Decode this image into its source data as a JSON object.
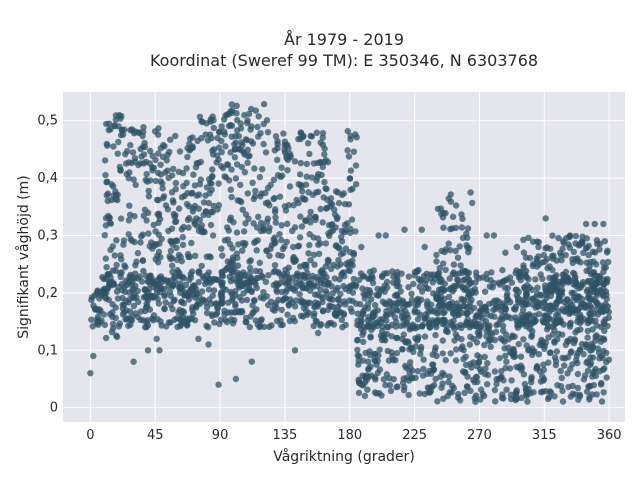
{
  "chart_data": {
    "type": "scatter",
    "title_line1": "År 1979 - 2019",
    "title_line2": "Koordinat (Sweref 99 TM): E 350346, N 6303768",
    "xlabel": "Vågriktning (grader)",
    "ylabel": "Signifikant våghöjd (m)",
    "xlim": [
      -19,
      371
    ],
    "ylim": [
      -0.025,
      0.55
    ],
    "xticks": [
      0,
      45,
      90,
      135,
      180,
      225,
      270,
      315,
      360
    ],
    "xtick_labels": [
      "0",
      "45",
      "90",
      "135",
      "180",
      "225",
      "270",
      "315",
      "360"
    ],
    "yticks": [
      0,
      0.1,
      0.2,
      0.3,
      0.4,
      0.5
    ],
    "ytick_labels": [
      "0",
      "0,1",
      "0,2",
      "0,3",
      "0,4",
      "0,5"
    ],
    "grid": true,
    "background_color": "#e5e5ee",
    "marker_color": "#2f5366",
    "clusters": [
      {
        "x_range": [
          0,
          360
        ],
        "y_range": [
          0.14,
          0.24
        ]
      },
      {
        "x_range": [
          10,
          25
        ],
        "y_range": [
          0.12,
          0.51
        ]
      },
      {
        "x_range": [
          25,
          48
        ],
        "y_range": [
          0.18,
          0.49
        ]
      },
      {
        "x_range": [
          48,
          72
        ],
        "y_range": [
          0.18,
          0.48
        ]
      },
      {
        "x_range": [
          72,
          92
        ],
        "y_range": [
          0.18,
          0.51
        ]
      },
      {
        "x_range": [
          92,
          125
        ],
        "y_range": [
          0.2,
          0.53
        ]
      },
      {
        "x_range": [
          125,
          165
        ],
        "y_range": [
          0.2,
          0.48
        ]
      },
      {
        "x_range": [
          165,
          178
        ],
        "y_range": [
          0.2,
          0.38
        ]
      },
      {
        "x_range": [
          178,
          185
        ],
        "y_range": [
          0.2,
          0.49
        ]
      },
      {
        "x_range": [
          185,
          240
        ],
        "y_range": [
          0.02,
          0.17
        ]
      },
      {
        "x_range": [
          240,
          265
        ],
        "y_range": [
          0.01,
          0.38
        ]
      },
      {
        "x_range": [
          265,
          360
        ],
        "y_range": [
          0.01,
          0.16
        ]
      },
      {
        "x_range": [
          300,
          360
        ],
        "y_range": [
          0.16,
          0.3
        ]
      }
    ],
    "outliers": [
      {
        "x": 0,
        "y": 0.06
      },
      {
        "x": 2,
        "y": 0.09
      },
      {
        "x": 12,
        "y": 0.36
      },
      {
        "x": 30,
        "y": 0.08
      },
      {
        "x": 40,
        "y": 0.1
      },
      {
        "x": 46,
        "y": 0.12
      },
      {
        "x": 48,
        "y": 0.1
      },
      {
        "x": 66,
        "y": 0.2
      },
      {
        "x": 75,
        "y": 0.12
      },
      {
        "x": 82,
        "y": 0.11
      },
      {
        "x": 89,
        "y": 0.04
      },
      {
        "x": 101,
        "y": 0.05
      },
      {
        "x": 112,
        "y": 0.08
      },
      {
        "x": 142,
        "y": 0.1
      },
      {
        "x": 158,
        "y": 0.13
      },
      {
        "x": 177,
        "y": 0.18
      },
      {
        "x": 188,
        "y": 0.28
      },
      {
        "x": 200,
        "y": 0.3
      },
      {
        "x": 205,
        "y": 0.3
      },
      {
        "x": 218,
        "y": 0.31
      },
      {
        "x": 230,
        "y": 0.31
      },
      {
        "x": 232,
        "y": 0.28
      },
      {
        "x": 275,
        "y": 0.3
      },
      {
        "x": 280,
        "y": 0.3
      },
      {
        "x": 288,
        "y": 0.27
      },
      {
        "x": 296,
        "y": 0.28
      },
      {
        "x": 311,
        "y": 0.28
      },
      {
        "x": 316,
        "y": 0.33
      },
      {
        "x": 333,
        "y": 0.3
      },
      {
        "x": 344,
        "y": 0.32
      },
      {
        "x": 350,
        "y": 0.32
      },
      {
        "x": 356,
        "y": 0.32
      },
      {
        "x": 357,
        "y": 0.29
      },
      {
        "x": 326,
        "y": 0.27
      },
      {
        "x": 338,
        "y": 0.26
      }
    ]
  }
}
